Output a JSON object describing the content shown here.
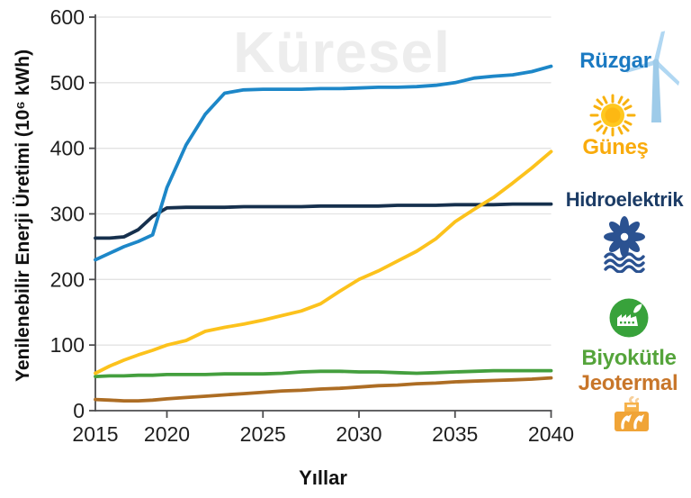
{
  "watermark": "Küresel",
  "chart_data": {
    "type": "line",
    "watermark_title": "Küresel",
    "xlabel": "Yıllar",
    "ylabel": "Yenilenebilir Enerji Üretimi (10⁶ kWh)",
    "xlim": [
      2015,
      2040
    ],
    "ylim": [
      0,
      600
    ],
    "grid": "horizontal",
    "legend_position": "right",
    "x_ticks": [
      2015,
      2020,
      2025,
      2030,
      2035,
      2040
    ],
    "y_ticks": [
      0,
      100,
      200,
      300,
      400,
      500,
      600
    ],
    "x": [
      2015,
      2016,
      2017,
      2018,
      2019,
      2020,
      2021,
      2022,
      2023,
      2024,
      2025,
      2026,
      2027,
      2028,
      2029,
      2030,
      2031,
      2032,
      2033,
      2034,
      2035,
      2036,
      2037,
      2038,
      2039,
      2040
    ],
    "series": [
      {
        "name": "Rüzgar",
        "color": "#1d87c8",
        "values": [
          230,
          240,
          250,
          258,
          268,
          340,
          405,
          452,
          484,
          489,
          490,
          490,
          490,
          491,
          491,
          492,
          493,
          493,
          494,
          496,
          500,
          507,
          510,
          512,
          517,
          525
        ]
      },
      {
        "name": "Güneş",
        "color": "#fcc21c",
        "values": [
          57,
          68,
          77,
          85,
          92,
          100,
          107,
          121,
          127,
          132,
          138,
          145,
          152,
          163,
          182,
          200,
          213,
          228,
          243,
          262,
          288,
          307,
          325,
          347,
          370,
          395
        ]
      },
      {
        "name": "Hidroelektrik",
        "color": "#16304d",
        "values": [
          263,
          263,
          265,
          276,
          296,
          309,
          310,
          310,
          310,
          311,
          311,
          311,
          311,
          312,
          312,
          312,
          312,
          313,
          313,
          313,
          314,
          314,
          314,
          315,
          315,
          315
        ]
      },
      {
        "name": "Biyokütle",
        "color": "#449f3e",
        "values": [
          52,
          53,
          53,
          54,
          54,
          55,
          55,
          55,
          56,
          56,
          56,
          57,
          59,
          60,
          60,
          59,
          59,
          58,
          57,
          58,
          59,
          60,
          61,
          61,
          61,
          61
        ]
      },
      {
        "name": "Jeotermal",
        "color": "#ad6d24",
        "values": [
          17,
          16,
          15,
          15,
          16,
          18,
          20,
          22,
          24,
          26,
          28,
          30,
          31,
          33,
          34,
          36,
          38,
          39,
          41,
          42,
          44,
          45,
          46,
          47,
          48,
          50
        ]
      }
    ]
  },
  "legend": {
    "items": [
      {
        "label": "Rüzgar",
        "color": "#1b7ac2",
        "icon": "wind-turbine-icon"
      },
      {
        "label": "Güneş",
        "color": "#f9ab0c",
        "icon": "sun-icon"
      },
      {
        "label": "Hidroelektrik",
        "color": "#1c3c66",
        "icon": "hydro-turbine-icon"
      },
      {
        "label": "Biyokütle",
        "color": "#55a43b",
        "icon": "biomass-plant-icon"
      },
      {
        "label": "Jeotermal",
        "color": "#c8762a",
        "icon": "geothermal-plant-icon"
      }
    ]
  }
}
